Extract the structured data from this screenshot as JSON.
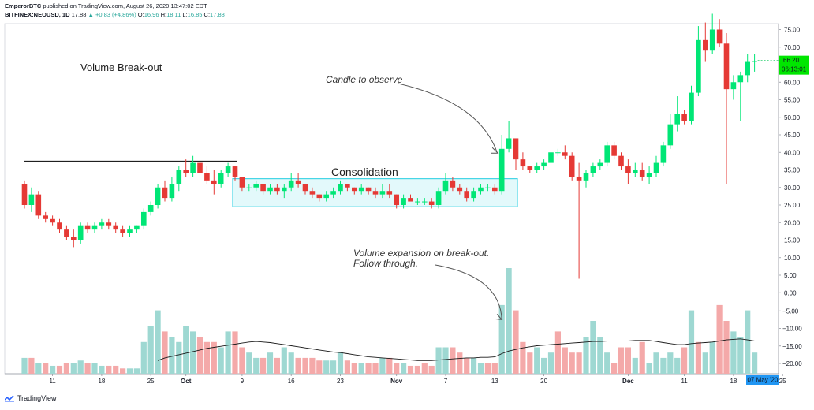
{
  "header": {
    "author": "EmperorBTC",
    "published": "published on TradingView.com, August 26, 2020 13:47:02 EDT",
    "symbol": "BITFINEX:NEOUSD, 1D",
    "last": "17.88",
    "change": "▲ +0.83 (+4.86%)",
    "o_label": "O:",
    "o_val": "16.96",
    "h_label": "H:",
    "h_val": "18.11",
    "l_label": "L:",
    "l_val": "16.85",
    "c_label": "C:",
    "c_val": "17.88"
  },
  "annotations": {
    "title": "Volume Break-out",
    "consolidation": "Consolidation",
    "candle": "Candle to observe",
    "volume_line1": "Volume expansion on break-out.",
    "volume_line2": "Follow through."
  },
  "price_tags": {
    "last_price": "66.20",
    "countdown": "06:13:01",
    "date_tag": "07 May '20"
  },
  "brand": "TradingView",
  "colors": {
    "up": "#00e676",
    "down": "#e53935",
    "vol_up": "#9ed8d2",
    "vol_down": "#f4a9a9",
    "consolidation_box": "#44d5e6",
    "price_tag_bg": "#00e600",
    "date_tag_bg": "#2196f3"
  },
  "chart_data": {
    "type": "candlestick",
    "price_axis": {
      "ticks": [
        75,
        70,
        65,
        60,
        55,
        50,
        45,
        40,
        35,
        30,
        25,
        20,
        15,
        10,
        5,
        0
      ],
      "tick_labels": [
        "75.00",
        "70.00",
        "65.00",
        "60.00",
        "55.00",
        "50.00",
        "45.00",
        "40.00",
        "35.00",
        "30.00",
        "25.00",
        "20.00",
        "15.00",
        "10.00",
        "5.00",
        "0.00"
      ]
    },
    "volume_axis": {
      "ticks": [
        -5,
        -10,
        -15,
        -20
      ],
      "tick_labels": [
        "−5.00",
        "−10.00",
        "−15.00",
        "−20.00"
      ]
    },
    "x_tick_labels": [
      {
        "i": 4,
        "label": "11"
      },
      {
        "i": 11,
        "label": "18"
      },
      {
        "i": 18,
        "label": "25"
      },
      {
        "i": 23,
        "label": "Oct"
      },
      {
        "i": 31,
        "label": "9"
      },
      {
        "i": 38,
        "label": "16"
      },
      {
        "i": 45,
        "label": "23"
      },
      {
        "i": 53,
        "label": "Nov"
      },
      {
        "i": 60,
        "label": "7"
      },
      {
        "i": 67,
        "label": "13"
      },
      {
        "i": 74,
        "label": "20"
      },
      {
        "i": 86,
        "label": "Dec"
      },
      {
        "i": 94,
        "label": "11"
      },
      {
        "i": 101,
        "label": "18"
      },
      {
        "i": 108,
        "label": "25"
      }
    ],
    "candles": [
      [
        31,
        32,
        24,
        25
      ],
      [
        25,
        30,
        23,
        28
      ],
      [
        28,
        29,
        21,
        22
      ],
      [
        22,
        23,
        20,
        21
      ],
      [
        21,
        22,
        19,
        20
      ],
      [
        20,
        21,
        17,
        18
      ],
      [
        18,
        19,
        15,
        16
      ],
      [
        16,
        18,
        13,
        15
      ],
      [
        15,
        20,
        14,
        19
      ],
      [
        19,
        20,
        17,
        18
      ],
      [
        18,
        20,
        17,
        19
      ],
      [
        19,
        21,
        18,
        20
      ],
      [
        20,
        21,
        18,
        19
      ],
      [
        19,
        20,
        17,
        18
      ],
      [
        18,
        19,
        16,
        17
      ],
      [
        17,
        19,
        16,
        18
      ],
      [
        18,
        19,
        17,
        19
      ],
      [
        19,
        24,
        18,
        23
      ],
      [
        23,
        26,
        22,
        25
      ],
      [
        25,
        31,
        24,
        30
      ],
      [
        30,
        32,
        26,
        27
      ],
      [
        27,
        33,
        26,
        31
      ],
      [
        31,
        36,
        29,
        35
      ],
      [
        35,
        38,
        33,
        34
      ],
      [
        34,
        39,
        33,
        37
      ],
      [
        37,
        37,
        33,
        34
      ],
      [
        34,
        36,
        31,
        32
      ],
      [
        32,
        35,
        28,
        31
      ],
      [
        31,
        35,
        30,
        34
      ],
      [
        34,
        37,
        33,
        36
      ],
      [
        36,
        36,
        32,
        33
      ],
      [
        33,
        33,
        29,
        30
      ],
      [
        30,
        31,
        29,
        30
      ],
      [
        30,
        32,
        29,
        31
      ],
      [
        31,
        31,
        28,
        29
      ],
      [
        29,
        31,
        28,
        30
      ],
      [
        30,
        31,
        28,
        29
      ],
      [
        29,
        31,
        27,
        30
      ],
      [
        30,
        34,
        29,
        32
      ],
      [
        32,
        34,
        30,
        31
      ],
      [
        31,
        31,
        28,
        29
      ],
      [
        29,
        30,
        27,
        28
      ],
      [
        28,
        28,
        26,
        27
      ],
      [
        27,
        29,
        26,
        28
      ],
      [
        28,
        30,
        27,
        29
      ],
      [
        29,
        32,
        28,
        31
      ],
      [
        31,
        31,
        29,
        30
      ],
      [
        30,
        30,
        28,
        29
      ],
      [
        29,
        31,
        28,
        30
      ],
      [
        30,
        30,
        28,
        29
      ],
      [
        29,
        30,
        27,
        28
      ],
      [
        28,
        31,
        27,
        29
      ],
      [
        29,
        31,
        27,
        28
      ],
      [
        28,
        28,
        24,
        25
      ],
      [
        25,
        28,
        24,
        27
      ],
      [
        27,
        28,
        26,
        26
      ],
      [
        26,
        27,
        25,
        26
      ],
      [
        26,
        27,
        25,
        26
      ],
      [
        26,
        27,
        24,
        25
      ],
      [
        25,
        30,
        24,
        29
      ],
      [
        29,
        34,
        28,
        32
      ],
      [
        32,
        33,
        29,
        30
      ],
      [
        30,
        31,
        28,
        29
      ],
      [
        29,
        30,
        26,
        27
      ],
      [
        27,
        30,
        26,
        29
      ],
      [
        29,
        31,
        28,
        30
      ],
      [
        30,
        31,
        29,
        30
      ],
      [
        30,
        31,
        28,
        29
      ],
      [
        29,
        45,
        28,
        41
      ],
      [
        41,
        49,
        40,
        44
      ],
      [
        44,
        44,
        35,
        38
      ],
      [
        38,
        40,
        35,
        36
      ],
      [
        36,
        36,
        34,
        35
      ],
      [
        35,
        37,
        34,
        36
      ],
      [
        36,
        38,
        35,
        37
      ],
      [
        37,
        42,
        36,
        40
      ],
      [
        40,
        41,
        39,
        40
      ],
      [
        40,
        42,
        38,
        39
      ],
      [
        39,
        40,
        32,
        33
      ],
      [
        33,
        37,
        4,
        32
      ],
      [
        32,
        35,
        30,
        34
      ],
      [
        34,
        37,
        33,
        36
      ],
      [
        36,
        38,
        35,
        37
      ],
      [
        37,
        43,
        36,
        42
      ],
      [
        42,
        43,
        38,
        39
      ],
      [
        39,
        40,
        35,
        36
      ],
      [
        36,
        38,
        31,
        34
      ],
      [
        34,
        37,
        33,
        35
      ],
      [
        35,
        37,
        32,
        33
      ],
      [
        33,
        36,
        31,
        34
      ],
      [
        34,
        39,
        33,
        37
      ],
      [
        37,
        43,
        36,
        42
      ],
      [
        42,
        51,
        41,
        48
      ],
      [
        48,
        56,
        46,
        51
      ],
      [
        51,
        52,
        48,
        49
      ],
      [
        49,
        59,
        48,
        57
      ],
      [
        57,
        76,
        56,
        72
      ],
      [
        72,
        77,
        66,
        69
      ],
      [
        69,
        80,
        68,
        75
      ],
      [
        75,
        78,
        70,
        71
      ],
      [
        71,
        74,
        31,
        58
      ],
      [
        58,
        62,
        55,
        60
      ],
      [
        60,
        63,
        49,
        62
      ],
      [
        62,
        68,
        60,
        66
      ],
      [
        66,
        68,
        63,
        66
      ]
    ],
    "volumes": [
      3,
      3,
      2,
      2,
      1.5,
      1.5,
      2,
      2,
      2.5,
      2,
      2,
      1.5,
      1.5,
      1.5,
      1,
      1,
      1,
      6,
      9,
      12,
      8,
      7,
      6,
      9,
      8,
      7,
      6,
      6,
      5,
      8,
      8,
      5,
      4,
      3,
      3,
      4,
      3,
      5,
      4,
      3,
      3,
      3,
      2.5,
      2.5,
      2.5,
      4,
      2.5,
      2,
      2,
      2,
      2,
      3,
      3,
      2,
      2,
      1.5,
      1.5,
      2,
      1.5,
      5,
      5,
      5,
      4,
      3,
      3,
      2,
      2,
      2,
      13,
      20,
      12,
      6,
      4,
      5,
      3,
      4,
      8,
      5,
      4,
      4,
      7,
      10,
      7,
      4,
      2,
      5,
      5,
      3,
      6,
      2,
      4,
      3,
      4,
      3,
      5,
      12,
      6,
      4,
      6,
      13,
      10,
      8,
      7,
      12,
      4
    ],
    "volume_direction": [
      "up",
      "down",
      "up",
      "down",
      "up",
      "down",
      "down",
      "up",
      "up",
      "down",
      "up",
      "up",
      "down",
      "down",
      "down",
      "up",
      "up",
      "up",
      "up",
      "up",
      "down",
      "up",
      "up",
      "up",
      "up",
      "down",
      "down",
      "down",
      "up",
      "up",
      "down",
      "down",
      "up",
      "up",
      "down",
      "up",
      "down",
      "up",
      "up",
      "down",
      "down",
      "down",
      "down",
      "up",
      "up",
      "up",
      "down",
      "down",
      "up",
      "down",
      "down",
      "up",
      "down",
      "down",
      "up",
      "down",
      "down",
      "down",
      "down",
      "up",
      "up",
      "down",
      "down",
      "down",
      "up",
      "up",
      "down",
      "down",
      "up",
      "up",
      "down",
      "down",
      "down",
      "up",
      "up",
      "up",
      "down",
      "down",
      "down",
      "down",
      "up",
      "up",
      "up",
      "up",
      "down",
      "down",
      "down",
      "up",
      "down",
      "up",
      "up",
      "up",
      "up",
      "up",
      "down",
      "up",
      "down",
      "up",
      "up",
      "down",
      "down",
      "up",
      "up",
      "up",
      "up"
    ],
    "volume_ma": [
      null,
      null,
      null,
      null,
      null,
      null,
      null,
      null,
      null,
      null,
      null,
      null,
      null,
      null,
      null,
      null,
      null,
      null,
      null,
      2.5,
      3,
      3.3,
      3.6,
      3.9,
      4.2,
      4.5,
      4.8,
      5,
      5.2,
      5.4,
      5.6,
      5.8,
      6,
      6.1,
      6,
      5.9,
      5.7,
      5.5,
      5.3,
      5.1,
      4.9,
      4.7,
      4.5,
      4.3,
      4.1,
      4,
      3.8,
      3.6,
      3.4,
      3.2,
      3.1,
      3,
      2.9,
      2.8,
      2.7,
      2.6,
      2.5,
      2.5,
      2.5,
      2.6,
      2.7,
      2.8,
      2.9,
      3,
      3,
      3.1,
      3.1,
      3.2,
      3.8,
      4.3,
      4.6,
      4.9,
      5.1,
      5.3,
      5.4,
      5.5,
      5.6,
      5.7,
      5.8,
      5.9,
      6,
      6.1,
      6.1,
      6.2,
      6.2,
      6.2,
      6.2,
      6.3,
      6.3,
      6.3,
      6.1,
      5.9,
      5.7,
      5.5,
      5.5,
      5.7,
      5.8,
      5.9,
      6,
      6.2,
      6.4,
      6.5,
      6.6,
      6.4,
      6.2
    ],
    "resistance_line_price": 37.5,
    "consolidation_range": [
      24.5,
      32.5
    ]
  }
}
